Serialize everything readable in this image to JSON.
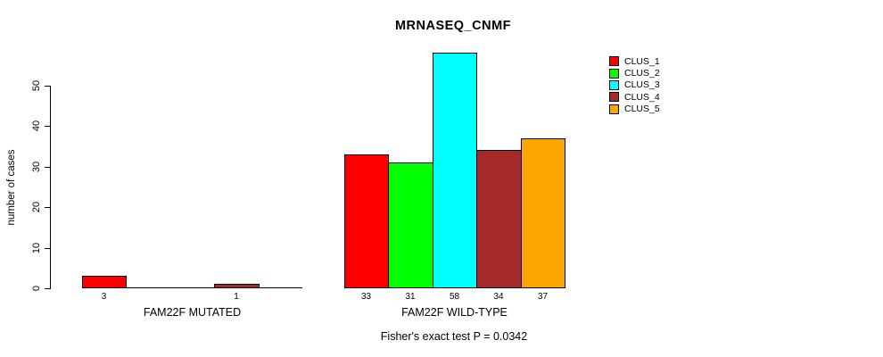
{
  "chart_data": {
    "type": "bar",
    "title": "MRNASEQ_CNMF",
    "ylabel": "number of cases",
    "yticks": [
      0,
      10,
      20,
      30,
      40,
      50
    ],
    "ylim": [
      0,
      58
    ],
    "grid": false,
    "legend_position": "right",
    "categories": [
      "CLUS_1",
      "CLUS_2",
      "CLUS_3",
      "CLUS_4",
      "CLUS_5"
    ],
    "groups": [
      {
        "label": "FAM22F MUTATED",
        "values": [
          3,
          0,
          0,
          1,
          0
        ],
        "bar_labels": [
          "3",
          "",
          "",
          "1",
          ""
        ]
      },
      {
        "label": "FAM22F WILD-TYPE",
        "values": [
          33,
          31,
          58,
          34,
          37
        ],
        "bar_labels": [
          "33",
          "31",
          "58",
          "34",
          "37"
        ]
      }
    ],
    "legend": [
      {
        "label": "CLUS_1",
        "color": "#ff0000"
      },
      {
        "label": "CLUS_2",
        "color": "#00ff00"
      },
      {
        "label": "CLUS_3",
        "color": "#00ffff"
      },
      {
        "label": "CLUS_4",
        "color": "#a52a2a"
      },
      {
        "label": "CLUS_5",
        "color": "#ffa500"
      }
    ],
    "footnote": "Fisher's exact test P = 0.0342"
  }
}
